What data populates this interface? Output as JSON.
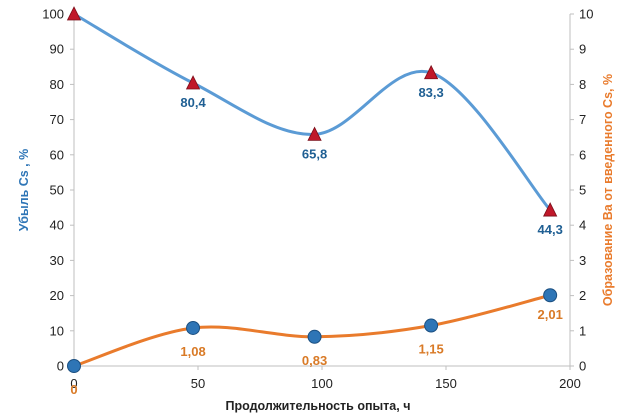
{
  "chart_data": {
    "type": "line",
    "title": "",
    "xlabel": "Продолжительность опыта, ч",
    "ylabel_left": "Убыль Cs , %",
    "ylabel_right": "Образование  Ba от  введенного Cs, %",
    "xlim": [
      0,
      200
    ],
    "ylim_left": [
      0,
      100
    ],
    "ylim_right": [
      0,
      10
    ],
    "x_ticks": [
      "0",
      "50",
      "100",
      "150",
      "200"
    ],
    "y_left_ticks": [
      "0",
      "10",
      "20",
      "30",
      "40",
      "50",
      "60",
      "70",
      "80",
      "90",
      "100"
    ],
    "y_right_ticks": [
      "0",
      "1",
      "2",
      "3",
      "4",
      "5",
      "6",
      "7",
      "8",
      "9",
      "10"
    ],
    "grid": false,
    "legend": "none",
    "series": [
      {
        "axis": "left",
        "marker": "triangle",
        "color": "#5b9bd5",
        "marker_color": "#c0182a",
        "label_color": "#1f5f93",
        "x": [
          0,
          48,
          97,
          144,
          192
        ],
        "y": [
          100,
          80.4,
          65.8,
          83.3,
          44.3
        ],
        "labels": [
          "",
          "80,4",
          "65,8",
          "83,3",
          "44,3"
        ]
      },
      {
        "axis": "right",
        "marker": "circle",
        "color": "#e97b2c",
        "marker_color": "#2e75b6",
        "label_color": "#d97a26",
        "x": [
          0,
          48,
          97,
          144,
          192
        ],
        "y": [
          0,
          1.08,
          0.83,
          1.15,
          2.01
        ],
        "labels": [
          "0",
          "1,08",
          "0,83",
          "1,15",
          "2,01"
        ]
      }
    ]
  }
}
